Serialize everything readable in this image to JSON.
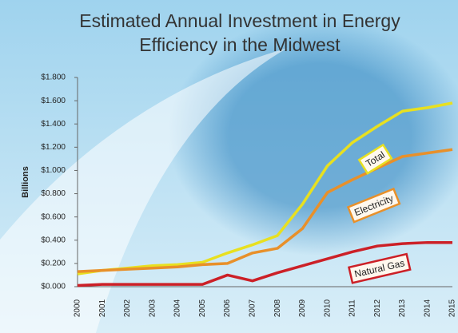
{
  "chart_data": {
    "type": "line",
    "title": [
      "Estimated Annual Investment in Energy",
      "Efficiency in the Midwest"
    ],
    "y_label": "Billions",
    "categories": [
      "2000",
      "2001",
      "2002",
      "2003",
      "2004",
      "2005",
      "2006",
      "2007",
      "2008",
      "2009",
      "2010",
      "2011",
      "2012",
      "2013",
      "2014",
      "2015"
    ],
    "series": [
      {
        "name": "Total",
        "color": "#e8e020",
        "values": [
          0.11,
          0.14,
          0.16,
          0.18,
          0.19,
          0.21,
          0.29,
          0.36,
          0.44,
          0.71,
          1.04,
          1.24,
          1.38,
          1.51,
          1.54,
          1.58
        ]
      },
      {
        "name": "Electricity",
        "color": "#e8902a",
        "values": [
          0.13,
          0.14,
          0.15,
          0.16,
          0.17,
          0.19,
          0.2,
          0.29,
          0.33,
          0.5,
          0.81,
          0.92,
          1.02,
          1.12,
          1.15,
          1.18
        ]
      },
      {
        "name": "Natural Gas",
        "color": "#cc2027",
        "values": [
          0.01,
          0.02,
          0.02,
          0.02,
          0.02,
          0.02,
          0.1,
          0.05,
          0.12,
          0.18,
          0.24,
          0.3,
          0.35,
          0.37,
          0.38,
          0.38
        ]
      }
    ],
    "ylim": [
      0,
      1.8
    ],
    "yticks": [
      {
        "value": 0,
        "label": "$0.000"
      },
      {
        "value": 0.2,
        "label": "$0.200"
      },
      {
        "value": 0.4,
        "label": "$0.400"
      },
      {
        "value": 0.6,
        "label": "$0.600"
      },
      {
        "value": 0.8,
        "label": "$0.800"
      },
      {
        "value": 1.0,
        "label": "$1.000"
      },
      {
        "value": 1.2,
        "label": "$1.200"
      },
      {
        "value": 1.4,
        "label": "$1.400"
      },
      {
        "value": 1.6,
        "label": "$1.600"
      },
      {
        "value": 1.8,
        "label": "$1.800"
      }
    ]
  }
}
